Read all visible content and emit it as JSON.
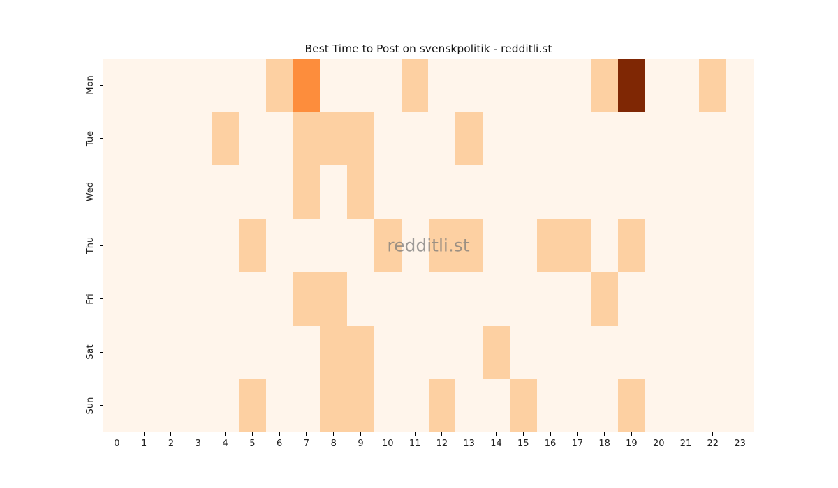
{
  "chart_data": {
    "type": "heatmap",
    "title": "Best Time to Post on svenskpolitik - redditli.st",
    "watermark": "redditli.st",
    "xlabel": "",
    "ylabel": "",
    "x_labels": [
      "0",
      "1",
      "2",
      "3",
      "4",
      "5",
      "6",
      "7",
      "8",
      "9",
      "10",
      "11",
      "12",
      "13",
      "14",
      "15",
      "16",
      "17",
      "18",
      "19",
      "20",
      "21",
      "22",
      "23"
    ],
    "y_labels": [
      "Mon",
      "Tue",
      "Wed",
      "Thu",
      "Fri",
      "Sat",
      "Sun"
    ],
    "values": [
      [
        0,
        0,
        0,
        0,
        0,
        0,
        1,
        2,
        0,
        0,
        0,
        1,
        0,
        0,
        0,
        0,
        0,
        0,
        1,
        4,
        0,
        0,
        1,
        0
      ],
      [
        0,
        0,
        0,
        0,
        1,
        0,
        0,
        1,
        1,
        1,
        0,
        0,
        0,
        1,
        0,
        0,
        0,
        0,
        0,
        0,
        0,
        0,
        0,
        0
      ],
      [
        0,
        0,
        0,
        0,
        0,
        0,
        0,
        1,
        0,
        1,
        0,
        0,
        0,
        0,
        0,
        0,
        0,
        0,
        0,
        0,
        0,
        0,
        0,
        0
      ],
      [
        0,
        0,
        0,
        0,
        0,
        1,
        0,
        0,
        0,
        0,
        1,
        0,
        1,
        1,
        0,
        0,
        1,
        1,
        0,
        1,
        0,
        0,
        0,
        0
      ],
      [
        0,
        0,
        0,
        0,
        0,
        0,
        0,
        1,
        1,
        0,
        0,
        0,
        0,
        0,
        0,
        0,
        0,
        0,
        1,
        0,
        0,
        0,
        0,
        0
      ],
      [
        0,
        0,
        0,
        0,
        0,
        0,
        0,
        0,
        1,
        1,
        0,
        0,
        0,
        0,
        1,
        0,
        0,
        0,
        0,
        0,
        0,
        0,
        0,
        0
      ],
      [
        0,
        0,
        0,
        0,
        0,
        1,
        0,
        0,
        1,
        1,
        0,
        0,
        1,
        0,
        0,
        1,
        0,
        0,
        0,
        1,
        0,
        0,
        0,
        0
      ]
    ],
    "value_range": [
      0,
      4
    ],
    "colormap": "Oranges",
    "colors": {
      "0": "#fff5eb",
      "1": "#fdd0a2",
      "2": "#fd8d3c",
      "4": "#7f2704"
    },
    "figure_background": "#ffffff",
    "grid": false,
    "legend_position": "none"
  }
}
